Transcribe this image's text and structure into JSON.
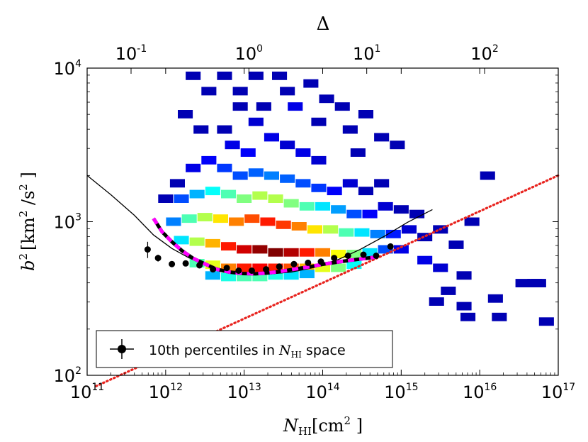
{
  "chart_data": {
    "type": "heatmap",
    "top_axis": {
      "label": "Δ",
      "scale": "log",
      "tick_labels": [
        {
          "mantissa": "10",
          "exponent": "-1",
          "value": 0.1
        },
        {
          "mantissa": "10",
          "exponent": "0",
          "value": 1
        },
        {
          "mantissa": "10",
          "exponent": "1",
          "value": 10
        },
        {
          "mantissa": "10",
          "exponent": "2",
          "value": 100
        }
      ]
    },
    "x_axis": {
      "label_main": "N",
      "label_sub": "HI",
      "label_unit": "[cm",
      "label_unit_exp": "2",
      "label_unit_close": " ]",
      "scale": "log",
      "range": [
        100000000000.0,
        1e+17
      ],
      "tick_labels": [
        {
          "mantissa": "10",
          "exponent": "11",
          "value": 100000000000.0
        },
        {
          "mantissa": "10",
          "exponent": "12",
          "value": 1000000000000.0
        },
        {
          "mantissa": "10",
          "exponent": "13",
          "value": 10000000000000.0
        },
        {
          "mantissa": "10",
          "exponent": "14",
          "value": 100000000000000.0
        },
        {
          "mantissa": "10",
          "exponent": "15",
          "value": 1000000000000000.0
        },
        {
          "mantissa": "10",
          "exponent": "16",
          "value": 1e+16
        },
        {
          "mantissa": "10",
          "exponent": "17",
          "value": 1e+17
        }
      ]
    },
    "y_axis": {
      "label_main": "b",
      "label_exp": "2",
      "label_unit": "[km",
      "label_unit_exp": "2",
      "label_unit_mid": " /s",
      "label_unit_exp2": "2",
      "label_unit_close": " ]",
      "scale": "log",
      "range": [
        100,
        10000
      ],
      "tick_labels": [
        {
          "mantissa": "10",
          "exponent": "2",
          "value": 100
        },
        {
          "mantissa": "10",
          "exponent": "3",
          "value": 1000
        },
        {
          "mantissa": "10",
          "exponent": "4",
          "value": 10000
        }
      ]
    },
    "legend": {
      "placement": "lower-left",
      "label_text": "10th percentiles in ",
      "label_math": "N",
      "label_math_sub": "HI",
      "label_tail": " space"
    },
    "percentile_points": {
      "name": "10th percentiles in N_HI space",
      "color": "#000000",
      "x": [
        590000000000.0,
        800000000000.0,
        1200000000000.0,
        1800000000000.0,
        2700000000000.0,
        4000000000000.0,
        6000000000000.0,
        8500000000000.0,
        12500000000000.0,
        19000000000000.0,
        28000000000000.0,
        43000000000000.0,
        65000000000000.0,
        95000000000000.0,
        140000000000000.0,
        210000000000000.0,
        330000000000000.0,
        480000000000000.0,
        730000000000000.0
      ],
      "y": [
        660,
        580,
        530,
        535,
        520,
        490,
        500,
        480,
        480,
        490,
        510,
        530,
        540,
        550,
        580,
        600,
        610,
        600,
        690
      ],
      "yerr": [
        80,
        30,
        20,
        20,
        15,
        15,
        15,
        12,
        12,
        12,
        12,
        12,
        12,
        15,
        15,
        18,
        20,
        22,
        30
      ],
      "xerr_frac": 0.08
    },
    "dashed_fit": {
      "color_outer": "#000000",
      "color_inner": "#ff00ff",
      "x": [
        700000000000.0,
        900000000000.0,
        1200000000000.0,
        1600000000000.0,
        2200000000000.0,
        3200000000000.0,
        4500000000000.0,
        6500000000000.0,
        9500000000000.0,
        14000000000000.0,
        21000000000000.0,
        32000000000000.0,
        48000000000000.0,
        70000000000000.0,
        100000000000000.0,
        150000000000000.0,
        220000000000000.0,
        330000000000000.0,
        500000000000000.0
      ],
      "y": [
        1050,
        860,
        740,
        650,
        580,
        530,
        490,
        470,
        460,
        458,
        465,
        478,
        495,
        510,
        528,
        545,
        560,
        575,
        590
      ]
    },
    "solid_curve": {
      "color": "#000000",
      "x": [
        100000000000.0,
        200000000000.0,
        400000000000.0,
        700000000000.0,
        1200000000000.0,
        2000000000000.0,
        3500000000000.0,
        6000000000000.0,
        10000000000000.0,
        20000000000000.0,
        40000000000000.0,
        80000000000000.0,
        150000000000000.0,
        300000000000000.0,
        600000000000000.0,
        1200000000000000.0,
        2500000000000000.0
      ],
      "y": [
        2000,
        1500,
        1100,
        820,
        670,
        580,
        520,
        480,
        460,
        455,
        470,
        505,
        560,
        660,
        800,
        990,
        1200
      ]
    },
    "dotted_line": {
      "color": "#e8231e",
      "x": [
        130000000000.0,
        1e+17
      ],
      "y": [
        85,
        2000
      ]
    },
    "density_cells": [
      [
        12.35,
        3.95,
        0.05
      ],
      [
        12.55,
        3.85,
        0.05
      ],
      [
        12.75,
        3.95,
        0.05
      ],
      [
        12.95,
        3.85,
        0.05
      ],
      [
        13.15,
        3.95,
        0.05
      ],
      [
        13.25,
        3.75,
        0.05
      ],
      [
        13.45,
        3.95,
        0.05
      ],
      [
        13.55,
        3.85,
        0.05
      ],
      [
        13.65,
        3.75,
        0.1
      ],
      [
        13.85,
        3.9,
        0.05
      ],
      [
        13.95,
        3.65,
        0.05
      ],
      [
        14.05,
        3.8,
        0.05
      ],
      [
        14.25,
        3.75,
        0.05
      ],
      [
        14.35,
        3.6,
        0.05
      ],
      [
        14.55,
        3.7,
        0.05
      ],
      [
        14.75,
        3.55,
        0.05
      ],
      [
        14.95,
        3.5,
        0.05
      ],
      [
        14.45,
        3.45,
        0.05
      ],
      [
        12.95,
        3.75,
        0.05
      ],
      [
        13.15,
        3.65,
        0.08
      ],
      [
        13.35,
        3.55,
        0.1
      ],
      [
        12.45,
        3.6,
        0.05
      ],
      [
        12.25,
        3.7,
        0.05
      ],
      [
        12.75,
        3.6,
        0.05
      ],
      [
        12.85,
        3.5,
        0.1
      ],
      [
        13.05,
        3.45,
        0.12
      ],
      [
        13.55,
        3.5,
        0.08
      ],
      [
        13.75,
        3.45,
        0.1
      ],
      [
        13.95,
        3.4,
        0.08
      ],
      [
        12.15,
        3.25,
        0.05
      ],
      [
        12.35,
        3.35,
        0.1
      ],
      [
        12.55,
        3.4,
        0.12
      ],
      [
        12.75,
        3.35,
        0.18
      ],
      [
        12.95,
        3.3,
        0.2
      ],
      [
        13.15,
        3.32,
        0.22
      ],
      [
        13.35,
        3.3,
        0.25
      ],
      [
        13.55,
        3.28,
        0.22
      ],
      [
        13.75,
        3.25,
        0.2
      ],
      [
        13.95,
        3.22,
        0.18
      ],
      [
        14.15,
        3.2,
        0.12
      ],
      [
        14.35,
        3.25,
        0.08
      ],
      [
        14.55,
        3.2,
        0.05
      ],
      [
        14.75,
        3.25,
        0.05
      ],
      [
        12.0,
        3.15,
        0.05
      ],
      [
        12.2,
        3.15,
        0.2
      ],
      [
        12.4,
        3.18,
        0.3
      ],
      [
        12.6,
        3.2,
        0.38
      ],
      [
        12.8,
        3.18,
        0.45
      ],
      [
        13.0,
        3.15,
        0.5
      ],
      [
        13.2,
        3.17,
        0.55
      ],
      [
        13.4,
        3.15,
        0.55
      ],
      [
        13.6,
        3.12,
        0.5
      ],
      [
        13.8,
        3.1,
        0.45
      ],
      [
        14.0,
        3.1,
        0.35
      ],
      [
        14.2,
        3.08,
        0.28
      ],
      [
        14.4,
        3.05,
        0.2
      ],
      [
        14.6,
        3.05,
        0.12
      ],
      [
        14.8,
        3.1,
        0.08
      ],
      [
        15.0,
        3.08,
        0.05
      ],
      [
        15.2,
        3.05,
        0.05
      ],
      [
        12.1,
        3.0,
        0.25
      ],
      [
        12.3,
        3.02,
        0.45
      ],
      [
        12.5,
        3.03,
        0.55
      ],
      [
        12.7,
        3.02,
        0.65
      ],
      [
        12.9,
        3.0,
        0.75
      ],
      [
        13.1,
        3.02,
        0.8
      ],
      [
        13.3,
        3.0,
        0.85
      ],
      [
        13.5,
        2.98,
        0.82
      ],
      [
        13.7,
        2.97,
        0.75
      ],
      [
        13.9,
        2.95,
        0.65
      ],
      [
        14.1,
        2.95,
        0.55
      ],
      [
        14.3,
        2.93,
        0.45
      ],
      [
        14.5,
        2.93,
        0.35
      ],
      [
        14.7,
        2.92,
        0.25
      ],
      [
        14.9,
        2.92,
        0.15
      ],
      [
        15.1,
        2.95,
        0.08
      ],
      [
        15.3,
        2.9,
        0.05
      ],
      [
        12.2,
        2.88,
        0.35
      ],
      [
        12.4,
        2.87,
        0.55
      ],
      [
        12.6,
        2.86,
        0.7
      ],
      [
        12.8,
        2.84,
        0.85
      ],
      [
        13.0,
        2.82,
        0.92
      ],
      [
        13.2,
        2.82,
        0.98
      ],
      [
        13.4,
        2.8,
        1.0
      ],
      [
        13.6,
        2.8,
        0.95
      ],
      [
        13.8,
        2.8,
        0.85
      ],
      [
        14.0,
        2.8,
        0.75
      ],
      [
        14.2,
        2.79,
        0.62
      ],
      [
        14.4,
        2.79,
        0.5
      ],
      [
        14.6,
        2.8,
        0.35
      ],
      [
        14.8,
        2.82,
        0.2
      ],
      [
        15.0,
        2.82,
        0.1
      ],
      [
        12.4,
        2.73,
        0.45
      ],
      [
        12.6,
        2.72,
        0.6
      ],
      [
        12.8,
        2.7,
        0.75
      ],
      [
        13.0,
        2.7,
        0.85
      ],
      [
        13.2,
        2.7,
        0.88
      ],
      [
        13.4,
        2.7,
        0.85
      ],
      [
        13.6,
        2.7,
        0.8
      ],
      [
        13.8,
        2.7,
        0.7
      ],
      [
        14.0,
        2.7,
        0.6
      ],
      [
        14.2,
        2.7,
        0.5
      ],
      [
        14.4,
        2.72,
        0.38
      ],
      [
        12.6,
        2.65,
        0.3
      ],
      [
        12.8,
        2.64,
        0.4
      ],
      [
        13.0,
        2.64,
        0.45
      ],
      [
        13.2,
        2.64,
        0.45
      ],
      [
        13.4,
        2.65,
        0.4
      ],
      [
        13.6,
        2.65,
        0.35
      ],
      [
        13.8,
        2.66,
        0.3
      ],
      [
        15.3,
        2.75,
        0.1
      ],
      [
        15.5,
        2.7,
        0.08
      ],
      [
        15.7,
        2.85,
        0.05
      ],
      [
        15.9,
        3.0,
        0.05
      ],
      [
        16.1,
        3.3,
        0.05
      ],
      [
        15.6,
        2.55,
        0.05
      ],
      [
        15.8,
        2.65,
        0.05
      ],
      [
        15.5,
        2.95,
        0.05
      ],
      [
        15.45,
        2.48,
        0.05
      ],
      [
        15.8,
        2.45,
        0.05
      ],
      [
        15.85,
        2.38,
        0.05
      ],
      [
        16.2,
        2.5,
        0.05
      ],
      [
        16.25,
        2.38,
        0.05
      ],
      [
        16.55,
        2.6,
        0.05
      ],
      [
        16.75,
        2.6,
        0.05
      ],
      [
        16.85,
        2.35,
        0.05
      ],
      [
        16.7,
        2.6,
        0.05
      ]
    ]
  }
}
